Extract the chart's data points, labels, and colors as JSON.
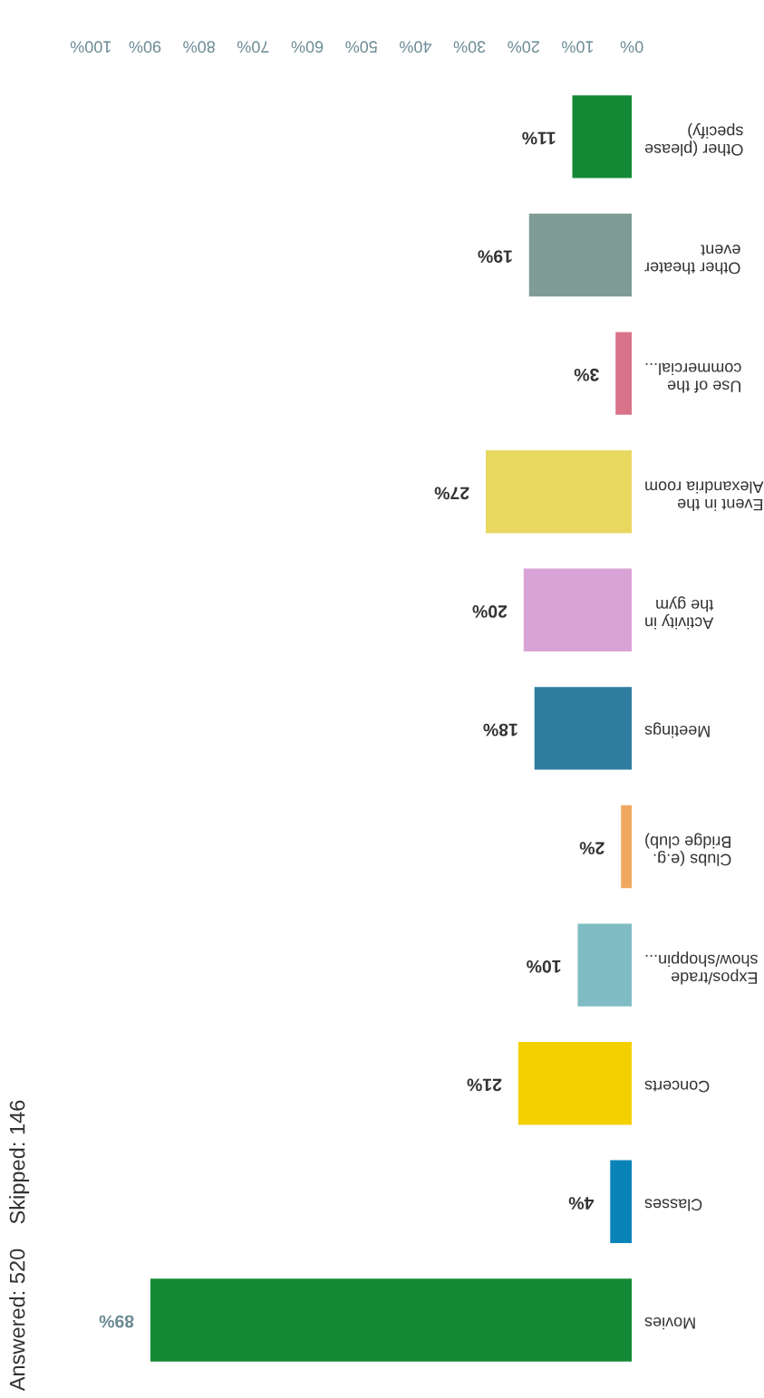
{
  "chart_data": {
    "type": "bar",
    "orientation": "horizontal",
    "categories": [
      "Other (please\nspecify)",
      "Other theater\nevent",
      "Use of the\ncommercial...",
      "Event in the\nAlexandria room",
      "Activity in\nthe gym",
      "Meetings",
      "Clubs (e.g.\nBridge club)",
      "Expos/trade\nshow/shoppin...",
      "Concerts",
      "Classes",
      "Movies"
    ],
    "values": [
      11,
      19,
      3,
      27,
      20,
      18,
      2,
      10,
      21,
      4,
      89
    ],
    "colors": [
      "#138a36",
      "#7f9c94",
      "#d9738a",
      "#e8d860",
      "#d9a3d6",
      "#2f7ea0",
      "#f0a860",
      "#7fbcc4",
      "#f5d000",
      "#0a84b8",
      "#138a36"
    ],
    "value_labels": [
      "11%",
      "19%",
      "3%",
      "27%",
      "20%",
      "18%",
      "2%",
      "10%",
      "21%",
      "4%",
      "89%"
    ],
    "xlim": [
      100,
      0
    ],
    "xticks": [
      {
        "value": 0,
        "label": "0%"
      },
      {
        "value": 10,
        "label": "10%"
      },
      {
        "value": 20,
        "label": "20%"
      },
      {
        "value": 30,
        "label": "30%"
      },
      {
        "value": 40,
        "label": "40%"
      },
      {
        "value": 50,
        "label": "50%"
      },
      {
        "value": 60,
        "label": "60%"
      },
      {
        "value": 70,
        "label": "70%"
      },
      {
        "value": 80,
        "label": "80%"
      },
      {
        "value": 90,
        "label": "90%"
      },
      {
        "value": 100,
        "label": "100%"
      }
    ],
    "grid": false,
    "annotations": [
      "Answered: 520    Skipped: 146"
    ]
  }
}
